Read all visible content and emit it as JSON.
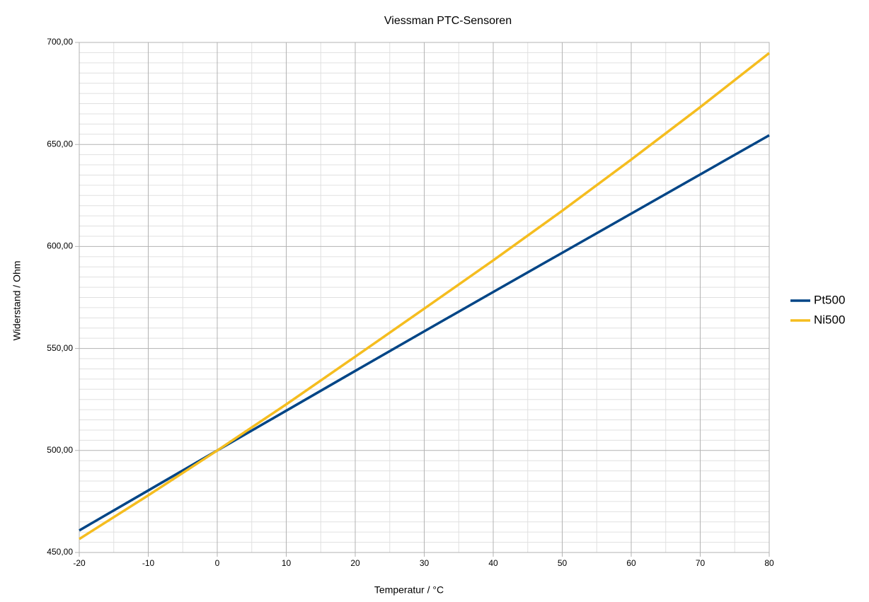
{
  "chart_data": {
    "type": "line",
    "title": "Viessman PTC-Sensoren",
    "x_label": "Temperatur / °C",
    "y_label": "Widerstand / Ohm",
    "x": [
      -20,
      -10,
      0,
      10,
      20,
      30,
      40,
      50,
      60,
      70,
      80
    ],
    "series": [
      {
        "name": "Pt500",
        "color": "#004586",
        "values": [
          460.8,
          480.4,
          500,
          519.5,
          539.0,
          558.4,
          577.7,
          596.9,
          616.1,
          635.3,
          654.5
        ]
      },
      {
        "name": "Ni500",
        "color": "#f5bd1f",
        "values": [
          456.6,
          478.0,
          500,
          522.6,
          546.0,
          569.5,
          593.2,
          617.5,
          642.6,
          668.3,
          694.8
        ]
      }
    ],
    "xlim": [
      -20,
      80
    ],
    "xticks": [
      -20,
      -10,
      0,
      10,
      20,
      30,
      40,
      50,
      60,
      70,
      80
    ],
    "ylim": [
      450,
      700
    ],
    "yticks": [
      {
        "value": 450,
        "label": "450,00"
      },
      {
        "value": 500,
        "label": "500,00"
      },
      {
        "value": 550,
        "label": "550,00"
      },
      {
        "value": 600,
        "label": "600,00"
      },
      {
        "value": 650,
        "label": "650,00"
      },
      {
        "value": 700,
        "label": "700,00"
      }
    ],
    "x_minor_ticks": [
      -15,
      -5,
      5,
      15,
      25,
      35,
      45,
      55,
      65,
      75
    ],
    "y_minor_ticks": [
      455,
      460,
      465,
      470,
      475,
      480,
      485,
      490,
      495,
      505,
      510,
      515,
      520,
      525,
      530,
      535,
      540,
      545,
      555,
      560,
      565,
      570,
      575,
      580,
      585,
      590,
      595,
      605,
      610,
      615,
      620,
      625,
      630,
      635,
      640,
      645,
      655,
      660,
      665,
      670,
      675,
      680,
      685,
      690,
      695
    ],
    "grid": true,
    "legend": "right"
  }
}
